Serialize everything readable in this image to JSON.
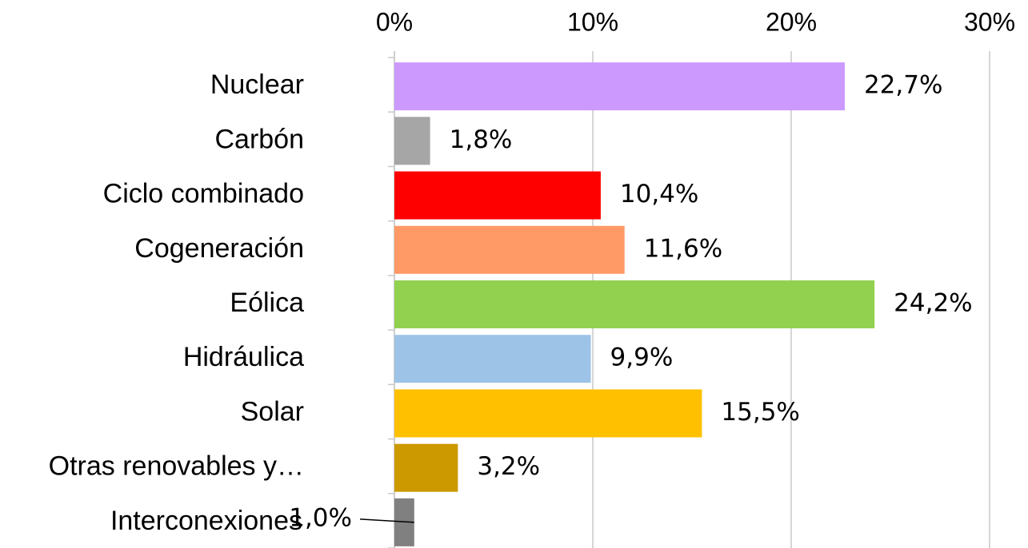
{
  "chart_data": {
    "type": "bar",
    "orientation": "horizontal",
    "categories": [
      "Nuclear",
      "Carbón",
      "Ciclo combinado",
      "Cogeneración",
      "Eólica",
      "Hidráulica",
      "Solar",
      "Otras renovables y…",
      "Interconexiones"
    ],
    "values": [
      22.7,
      1.8,
      10.4,
      11.6,
      24.2,
      9.9,
      15.5,
      3.2,
      1.0
    ],
    "value_labels": [
      "22,7%",
      "1,8%",
      "10,4%",
      "11,6%",
      "24,2%",
      "9,9%",
      "15,5%",
      "3,2%",
      "1,0%"
    ],
    "colors": [
      "#cc99ff",
      "#a6a6a6",
      "#ff0000",
      "#ff9966",
      "#92d050",
      "#9dc3e6",
      "#ffc000",
      "#cc9900",
      "#808080"
    ],
    "xlim": [
      0,
      30
    ],
    "xticks": [
      {
        "value": 0,
        "label": "0%"
      },
      {
        "value": 10,
        "label": "10%"
      },
      {
        "value": 20,
        "label": "20%"
      },
      {
        "value": 30,
        "label": "30%"
      }
    ],
    "grid": true
  }
}
